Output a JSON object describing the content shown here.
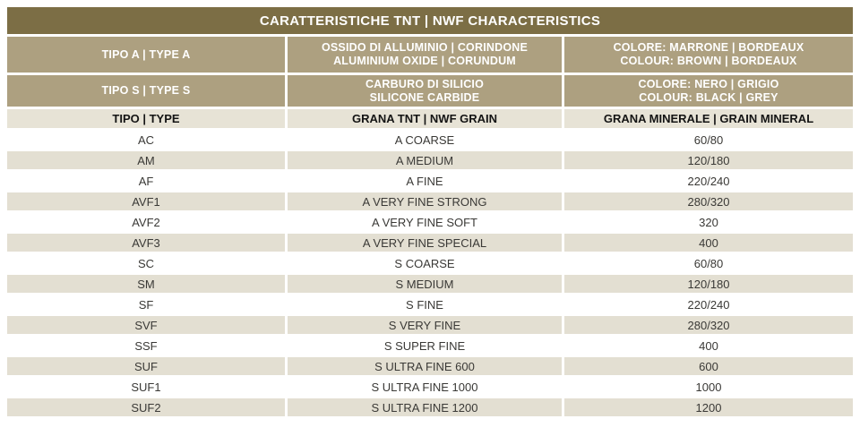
{
  "table": {
    "title": "CARATTERISTICHE TNT | NWF CHARACTERISTICS",
    "type_rows": [
      {
        "type": "TIPO A | TYPE A",
        "material_line1": "OSSIDO DI ALLUMINIO | CORINDONE",
        "material_line2": "ALUMINIUM OXIDE | CORUNDUM",
        "color_line1": "COLORE: MARRONE | BORDEAUX",
        "color_line2": "COLOUR: BROWN | BORDEAUX"
      },
      {
        "type": "TIPO S | TYPE S",
        "material_line1": "CARBURO DI SILICIO",
        "material_line2": "SILICONE CARBIDE",
        "color_line1": "COLORE: NERO | GRIGIO",
        "color_line2": "COLOUR: BLACK | GREY"
      }
    ],
    "columns": [
      "TIPO | TYPE",
      "GRANA TNT | NWF GRAIN",
      "GRANA MINERALE | GRAIN MINERAL"
    ],
    "rows": [
      [
        "AC",
        "A COARSE",
        "60/80"
      ],
      [
        "AM",
        "A MEDIUM",
        "120/180"
      ],
      [
        "AF",
        "A FINE",
        "220/240"
      ],
      [
        "AVF1",
        "A VERY FINE STRONG",
        "280/320"
      ],
      [
        "AVF2",
        "A VERY FINE SOFT",
        "320"
      ],
      [
        "AVF3",
        "A VERY FINE SPECIAL",
        "400"
      ],
      [
        "SC",
        "S COARSE",
        "60/80"
      ],
      [
        "SM",
        "S MEDIUM",
        "120/180"
      ],
      [
        "SF",
        "S FINE",
        "220/240"
      ],
      [
        "SVF",
        "S VERY FINE",
        "280/320"
      ],
      [
        "SSF",
        "S SUPER FINE",
        "400"
      ],
      [
        "SUF",
        "S ULTRA FINE 600",
        "600"
      ],
      [
        "SUF1",
        "S ULTRA FINE 1000",
        "1000"
      ],
      [
        "SUF2",
        "S ULTRA FINE 1200",
        "1200"
      ]
    ],
    "colors": {
      "title_bg": "#7c6e45",
      "subheader_bg": "#ada080",
      "header_bg": "#e7e3d6",
      "row_alt_bg": "#e3dfd2",
      "row_bg": "#ffffff",
      "title_text": "#ffffff",
      "data_text": "#3a3936"
    }
  }
}
